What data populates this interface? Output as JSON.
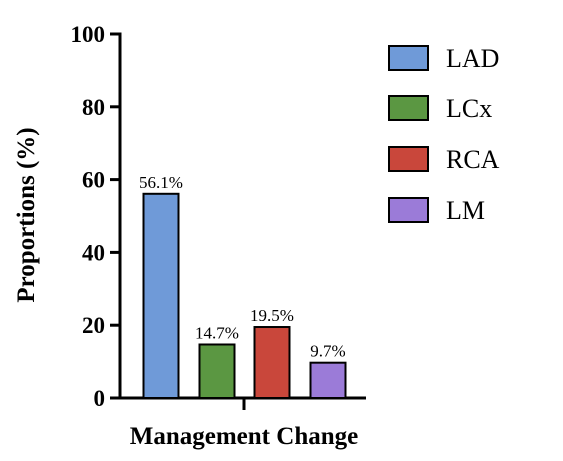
{
  "chart_data": {
    "type": "bar",
    "xlabel": "Management Change",
    "ylabel": "Proportions (%)",
    "ylim": [
      0,
      100
    ],
    "yticks": [
      0,
      20,
      40,
      60,
      80,
      100
    ],
    "legend_position": "right",
    "grid": false,
    "series": [
      {
        "name": "LAD",
        "value": 56.1,
        "label": "56.1%",
        "color": "#6f9ad8"
      },
      {
        "name": "LCx",
        "value": 14.7,
        "label": "14.7%",
        "color": "#5b9742"
      },
      {
        "name": "RCA",
        "value": 19.5,
        "label": "19.5%",
        "color": "#c9473b"
      },
      {
        "name": "LM",
        "value": 9.7,
        "label": "9.7%",
        "color": "#9b7bd8"
      }
    ]
  }
}
